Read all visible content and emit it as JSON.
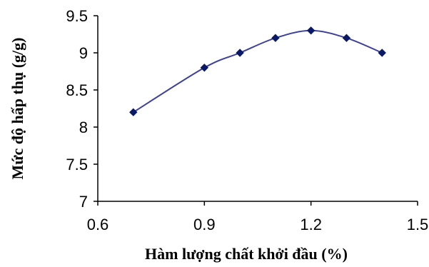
{
  "chart_data": {
    "type": "line",
    "title": "",
    "xlabel": "Hàm lượng chất khởi đầu (%)",
    "ylabel": "Mức độ hấp thụ (g/g)",
    "xlim": [
      0.6,
      1.5
    ],
    "ylim": [
      7,
      9.5
    ],
    "x_ticks": [
      "0.6",
      "0.9",
      "1.2",
      "1.5"
    ],
    "y_ticks": [
      "7",
      "7.5",
      "8",
      "8.5",
      "9",
      "9.5"
    ],
    "x_tick_values": [
      0.6,
      0.9,
      1.2,
      1.5
    ],
    "y_tick_values": [
      7,
      7.5,
      8,
      8.5,
      9,
      9.5
    ],
    "smooth": true,
    "grid": false,
    "legend": "none",
    "series": [
      {
        "x": [
          0.7,
          0.9,
          1.0,
          1.1,
          1.2,
          1.3,
          1.4
        ],
        "y": [
          8.2,
          8.8,
          9.0,
          9.2,
          9.3,
          9.2,
          9.0
        ],
        "marker": "diamond",
        "line_color": "#3b3f9e",
        "marker_color": "#0a1a66"
      }
    ]
  }
}
